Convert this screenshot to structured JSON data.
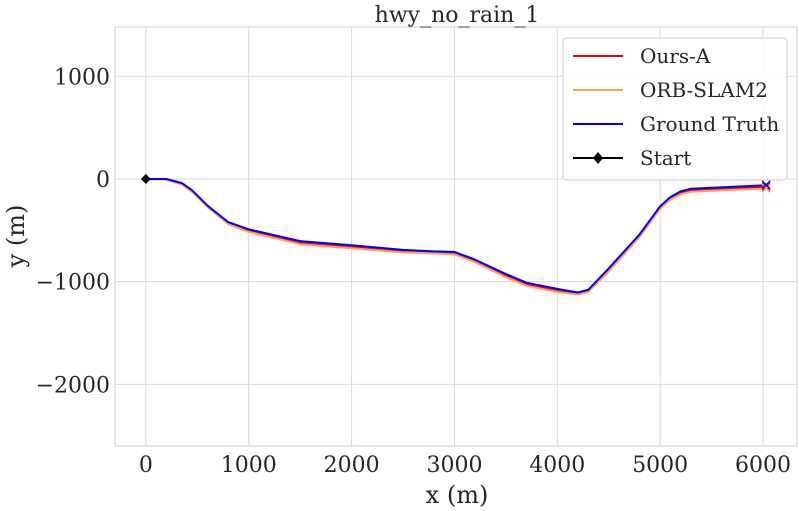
{
  "chart_data": {
    "type": "line",
    "title": "hwy_no_rain_1",
    "xlabel": "x (m)",
    "ylabel": "y (m)",
    "xlim": [
      -300,
      6330
    ],
    "ylim": [
      -2600,
      1480
    ],
    "xticks": [
      0,
      1000,
      2000,
      3000,
      4000,
      5000,
      6000
    ],
    "yticks": [
      1000,
      0,
      -1000,
      -2000
    ],
    "xtick_labels": [
      "0",
      "1000",
      "2000",
      "3000",
      "4000",
      "5000",
      "6000"
    ],
    "ytick_labels": [
      "1000",
      "0",
      "−1000",
      "−2000"
    ],
    "grid": true,
    "legend_position": "top-right",
    "series": [
      {
        "name": "Ours-A",
        "color": "#ff0000",
        "x": [
          0,
          200,
          350,
          450,
          600,
          800,
          1000,
          1500,
          2000,
          2500,
          2800,
          3000,
          3200,
          3500,
          3700,
          4000,
          4200,
          4300,
          4500,
          4800,
          5000,
          5100,
          5200,
          5300,
          5500,
          6000,
          6030
        ],
        "y": [
          0,
          -5,
          -50,
          -120,
          -270,
          -430,
          -505,
          -620,
          -660,
          -700,
          -715,
          -725,
          -800,
          -940,
          -1025,
          -1085,
          -1115,
          -1090,
          -890,
          -555,
          -280,
          -190,
          -135,
          -110,
          -100,
          -80,
          -75
        ]
      },
      {
        "name": "ORB-SLAM2",
        "color": "#ffa15a",
        "x": [
          0,
          200,
          350,
          450,
          600,
          800,
          1000,
          1500,
          2000,
          2500,
          2800,
          3000,
          3200,
          3500,
          3700,
          4000,
          4200,
          4300,
          4500,
          4800,
          5000,
          5100,
          5200,
          5300,
          5500,
          6000,
          6030
        ],
        "y": [
          0,
          -8,
          -55,
          -125,
          -275,
          -440,
          -515,
          -635,
          -675,
          -715,
          -725,
          -735,
          -810,
          -955,
          -1040,
          -1100,
          -1125,
          -1100,
          -900,
          -565,
          -290,
          -200,
          -148,
          -125,
          -115,
          -95,
          -90
        ]
      },
      {
        "name": "Ground Truth",
        "color": "#0000ff",
        "x": [
          0,
          200,
          350,
          450,
          600,
          800,
          1000,
          1500,
          2000,
          2500,
          2800,
          3000,
          3200,
          3500,
          3700,
          4000,
          4200,
          4300,
          4500,
          4800,
          5000,
          5100,
          5200,
          5300,
          5500,
          6000,
          6030
        ],
        "y": [
          0,
          0,
          -40,
          -110,
          -260,
          -420,
          -490,
          -605,
          -645,
          -690,
          -705,
          -710,
          -785,
          -925,
          -1010,
          -1070,
          -1105,
          -1080,
          -870,
          -540,
          -265,
          -175,
          -120,
          -95,
          -85,
          -62,
          -57
        ]
      }
    ],
    "markers": [
      {
        "name": "Start",
        "type": "diamond",
        "color": "#000000",
        "x": 0,
        "y": 0
      },
      {
        "type": "x",
        "color": "#ff0000",
        "x": 6030,
        "y": -75
      },
      {
        "type": "x",
        "color": "#ffa15a",
        "x": 6030,
        "y": -90
      },
      {
        "type": "x",
        "color": "#0000ff",
        "x": 6030,
        "y": -57
      }
    ],
    "legend": [
      {
        "label": "Ours-A",
        "color": "#ff0000",
        "style": "line"
      },
      {
        "label": "ORB-SLAM2",
        "color": "#ffa15a",
        "style": "line"
      },
      {
        "label": "Ground Truth",
        "color": "#0000ff",
        "style": "line"
      },
      {
        "label": "Start",
        "color": "#000000",
        "style": "diamond"
      }
    ]
  }
}
